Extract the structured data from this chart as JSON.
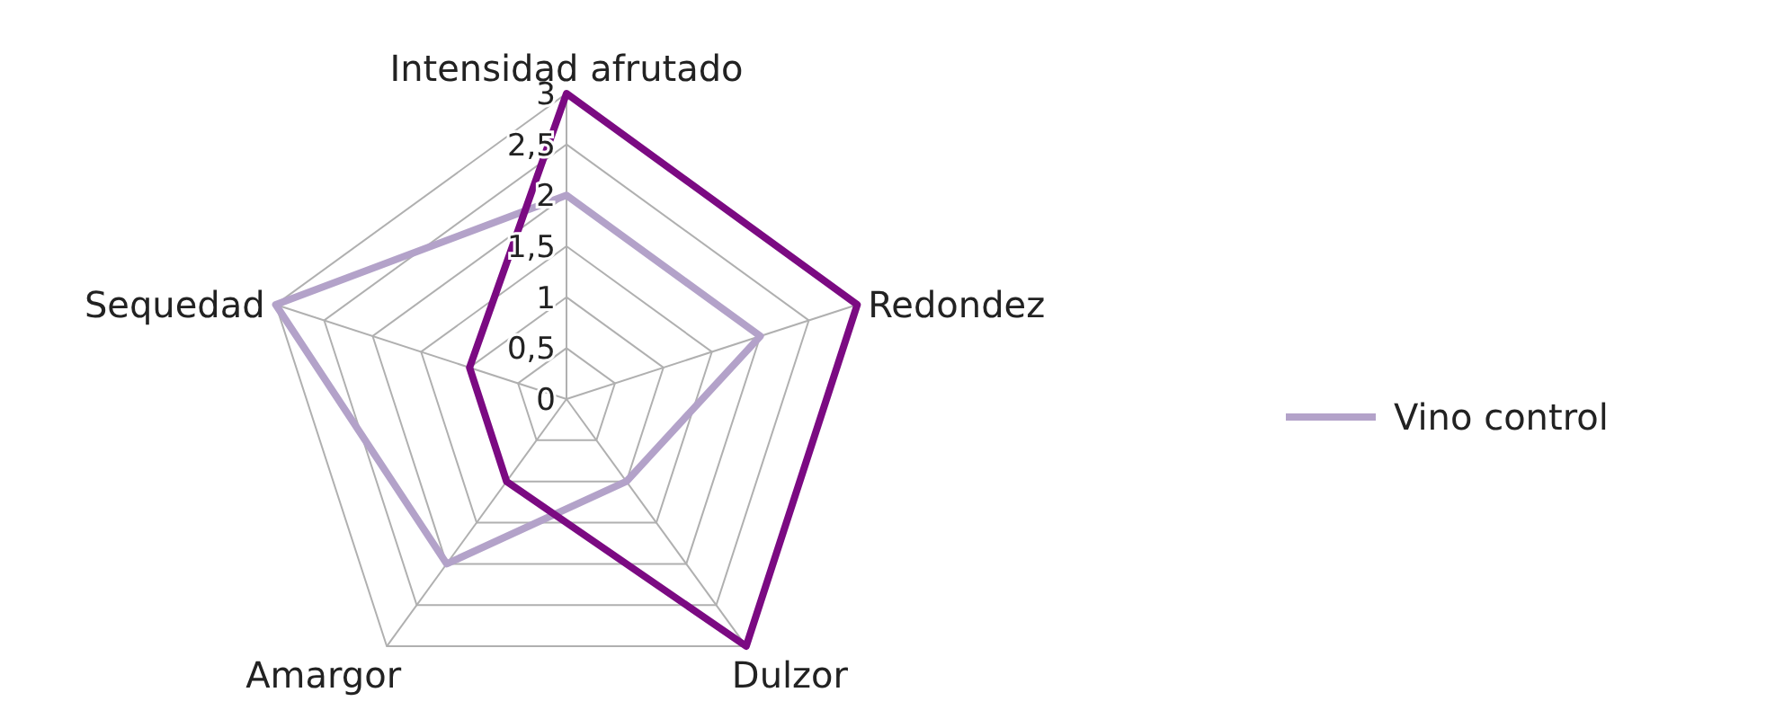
{
  "chart_data": {
    "type": "radar",
    "categories": [
      "Intensidad afrutado",
      "Redondez",
      "Dulzor",
      "Amargor",
      "Sequedad"
    ],
    "ylim": [
      0,
      3
    ],
    "yticks": [
      0,
      {
        "value": 0.5,
        "label": "0,5"
      },
      1,
      {
        "value": 1.5,
        "label": "1,5"
      },
      2,
      {
        "value": 2.5,
        "label": "2,5"
      },
      3
    ],
    "grid": true,
    "legend": "right",
    "series": [
      {
        "name": "Vino control",
        "color": "#b3a2c9",
        "values": [
          2,
          2,
          1,
          2,
          3
        ]
      },
      {
        "color": "#7b0a82",
        "values": [
          3,
          3,
          3,
          1,
          1
        ]
      }
    ]
  }
}
